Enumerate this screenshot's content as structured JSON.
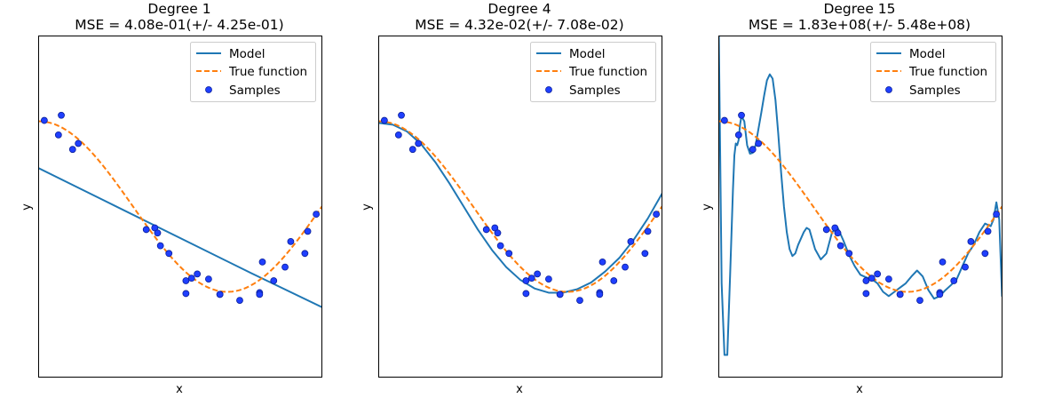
{
  "chart_data": [
    {
      "type": "line",
      "title": "Degree 1",
      "subtitle": "MSE = 4.08e-01(+/- 4.25e-01)",
      "xlabel": "x",
      "ylabel": "y",
      "xlim": [
        0,
        1
      ],
      "ylim": [
        -2,
        2
      ],
      "grid": false,
      "legend_position": "top-right",
      "series": [
        {
          "name": "Model",
          "color": "#1f77b4",
          "style": "solid",
          "model": "degree1"
        },
        {
          "name": "True function",
          "color": "#ff7f0e",
          "style": "dashed"
        },
        {
          "name": "Samples",
          "color": "#0000ff",
          "kind": "scatter"
        }
      ]
    },
    {
      "type": "line",
      "title": "Degree 4",
      "subtitle": "MSE = 4.32e-02(+/- 7.08e-02)",
      "xlabel": "x",
      "ylabel": "y",
      "xlim": [
        0,
        1
      ],
      "ylim": [
        -2,
        2
      ],
      "grid": false,
      "legend_position": "top-right",
      "series": [
        {
          "name": "Model",
          "color": "#1f77b4",
          "style": "solid",
          "model": "degree4"
        },
        {
          "name": "True function",
          "color": "#ff7f0e",
          "style": "dashed"
        },
        {
          "name": "Samples",
          "color": "#0000ff",
          "kind": "scatter"
        }
      ]
    },
    {
      "type": "line",
      "title": "Degree 15",
      "subtitle": "MSE = 1.83e+08(+/- 5.48e+08)",
      "xlabel": "x",
      "ylabel": "y",
      "xlim": [
        0,
        1
      ],
      "ylim": [
        -2,
        2
      ],
      "grid": false,
      "legend_position": "top-right",
      "series": [
        {
          "name": "Model",
          "color": "#1f77b4",
          "style": "solid",
          "model": "degree15"
        },
        {
          "name": "True function",
          "color": "#ff7f0e",
          "style": "dashed"
        },
        {
          "name": "Samples",
          "color": "#0000ff",
          "kind": "scatter"
        }
      ]
    }
  ],
  "true_function": "cos(1.5*pi*x)",
  "samples": {
    "x": [
      0.02,
      0.07,
      0.08,
      0.12,
      0.14,
      0.38,
      0.41,
      0.42,
      0.43,
      0.46,
      0.52,
      0.52,
      0.54,
      0.56,
      0.6,
      0.64,
      0.64,
      0.71,
      0.78,
      0.78,
      0.79,
      0.83,
      0.87,
      0.89,
      0.94,
      0.95,
      0.98
    ],
    "y": [
      1.01,
      0.84,
      1.07,
      0.67,
      0.74,
      -0.27,
      -0.25,
      -0.31,
      -0.46,
      -0.55,
      -0.87,
      -1.02,
      -0.84,
      -0.79,
      -0.85,
      -1.03,
      -1.03,
      -1.1,
      -1.01,
      -1.03,
      -0.65,
      -0.87,
      -0.71,
      -0.41,
      -0.55,
      -0.29,
      -0.09
    ]
  },
  "models": {
    "degree1": {
      "x": [
        0,
        0.25,
        0.5,
        0.75,
        1.0
      ],
      "y": [
        0.45,
        0.04,
        -0.37,
        -0.78,
        -1.18
      ]
    },
    "degree4": {
      "x": [
        0,
        0.05,
        0.1,
        0.15,
        0.2,
        0.25,
        0.3,
        0.35,
        0.4,
        0.45,
        0.5,
        0.55,
        0.6,
        0.65,
        0.7,
        0.75,
        0.8,
        0.85,
        0.9,
        0.95,
        1.0
      ],
      "y": [
        0.98,
        0.96,
        0.88,
        0.73,
        0.52,
        0.27,
        0.0,
        -0.27,
        -0.51,
        -0.71,
        -0.86,
        -0.96,
        -1.01,
        -1.01,
        -0.97,
        -0.89,
        -0.76,
        -0.6,
        -0.39,
        -0.14,
        0.15
      ]
    },
    "degree15": {
      "x": [
        0,
        0.01,
        0.02,
        0.03,
        0.04,
        0.05,
        0.055,
        0.06,
        0.065,
        0.07,
        0.075,
        0.08,
        0.09,
        0.1,
        0.11,
        0.12,
        0.13,
        0.14,
        0.15,
        0.16,
        0.17,
        0.18,
        0.19,
        0.2,
        0.21,
        0.22,
        0.23,
        0.24,
        0.25,
        0.26,
        0.27,
        0.28,
        0.3,
        0.31,
        0.32,
        0.34,
        0.36,
        0.38,
        0.4,
        0.42,
        0.44,
        0.46,
        0.48,
        0.5,
        0.52,
        0.54,
        0.56,
        0.58,
        0.6,
        0.62,
        0.64,
        0.66,
        0.68,
        0.7,
        0.72,
        0.74,
        0.76,
        0.78,
        0.8,
        0.82,
        0.84,
        0.86,
        0.88,
        0.9,
        0.92,
        0.94,
        0.96,
        0.97,
        0.98,
        0.99,
        1.0
      ],
      "y": [
        2.05,
        -0.9,
        -1.74,
        -1.74,
        -0.8,
        0.2,
        0.6,
        0.74,
        0.72,
        0.78,
        0.96,
        1.06,
        1.0,
        0.72,
        0.62,
        0.63,
        0.72,
        0.91,
        1.1,
        1.3,
        1.48,
        1.55,
        1.5,
        1.25,
        0.85,
        0.4,
        0.0,
        -0.3,
        -0.5,
        -0.58,
        -0.55,
        -0.45,
        -0.3,
        -0.25,
        -0.27,
        -0.5,
        -0.62,
        -0.55,
        -0.3,
        -0.25,
        -0.4,
        -0.57,
        -0.7,
        -0.8,
        -0.83,
        -0.85,
        -0.9,
        -1.0,
        -1.05,
        -1.0,
        -0.95,
        -0.9,
        -0.82,
        -0.75,
        -0.82,
        -0.98,
        -1.08,
        -1.05,
        -0.98,
        -0.92,
        -0.85,
        -0.7,
        -0.55,
        -0.45,
        -0.3,
        -0.2,
        -0.23,
        -0.15,
        0.05,
        -0.15,
        -1.05
      ]
    }
  }
}
